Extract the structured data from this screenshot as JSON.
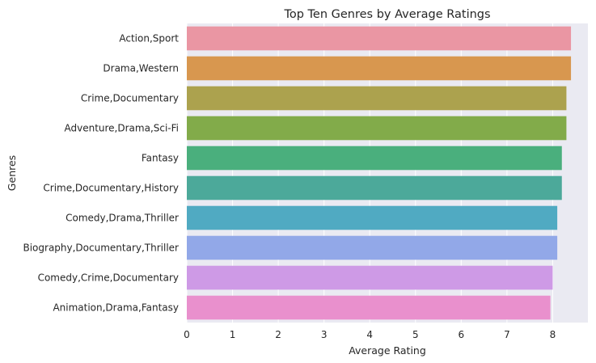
{
  "chart_data": {
    "type": "bar",
    "orientation": "horizontal",
    "title": "Top Ten Genres by Average Ratings",
    "xlabel": "Average Rating",
    "ylabel": "Genres",
    "xlim": [
      0,
      8.77
    ],
    "xticks": [
      0,
      1,
      2,
      3,
      4,
      5,
      6,
      7,
      8
    ],
    "grid": true,
    "categories": [
      "Action,Sport",
      "Drama,Western",
      "Crime,Documentary",
      "Adventure,Drama,Sci-Fi",
      "Fantasy",
      "Crime,Documentary,History",
      "Comedy,Drama,Thriller",
      "Biography,Documentary,Thriller",
      "Comedy,Crime,Documentary",
      "Animation,Drama,Fantasy"
    ],
    "values": [
      8.4,
      8.4,
      8.3,
      8.3,
      8.2,
      8.2,
      8.1,
      8.1,
      8.0,
      7.95
    ],
    "colors": [
      "#ea96a3",
      "#d8974f",
      "#aca24e",
      "#82ab4a",
      "#4aaf7d",
      "#4ca99a",
      "#50aac2",
      "#92a8e8",
      "#ce9ae6",
      "#e990cd"
    ]
  }
}
